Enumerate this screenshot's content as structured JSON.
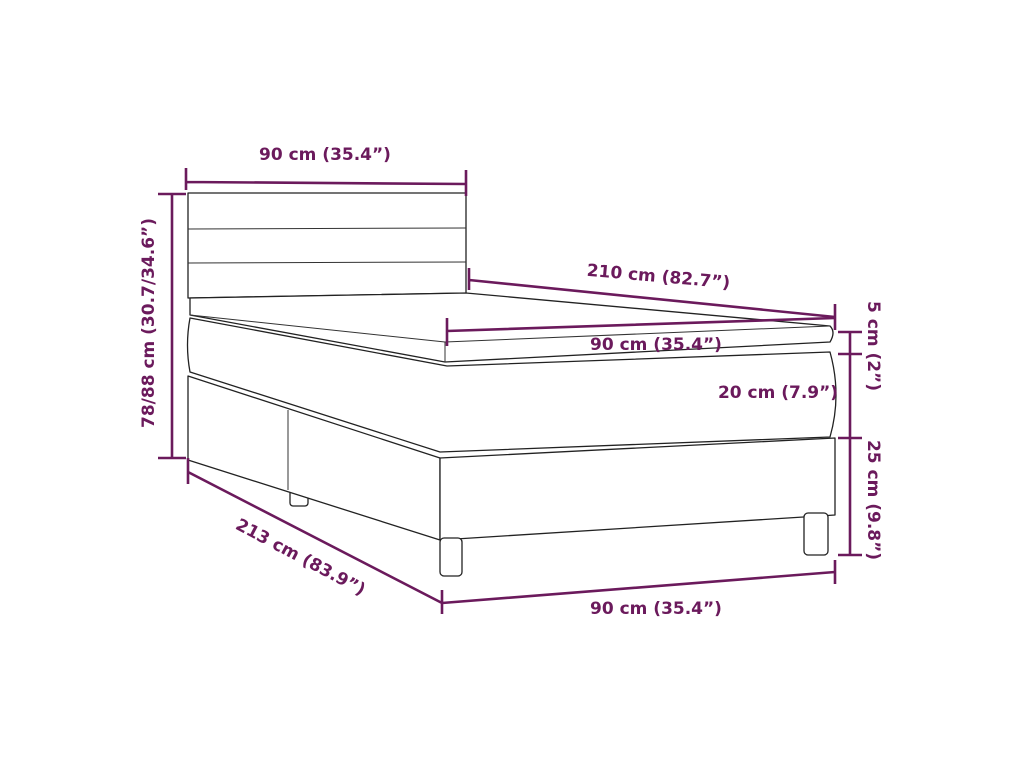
{
  "colors": {
    "dimension": "#6b1a5c",
    "outline": "#222222",
    "background": "#ffffff"
  },
  "dimensions": {
    "headboard_width": "90 cm (35.4”)",
    "total_height": "78/88 cm (30.7/34.6”)",
    "mattress_length": "210 cm (82.7”)",
    "mattress_width": "90 cm (35.4”)",
    "topper_height": "5 cm (2”)",
    "mattress_height": "20 cm (7.9”)",
    "base_height": "25 cm (9.8”)",
    "total_length": "213 cm (83.9”)",
    "base_width": "90 cm (35.4”)"
  }
}
